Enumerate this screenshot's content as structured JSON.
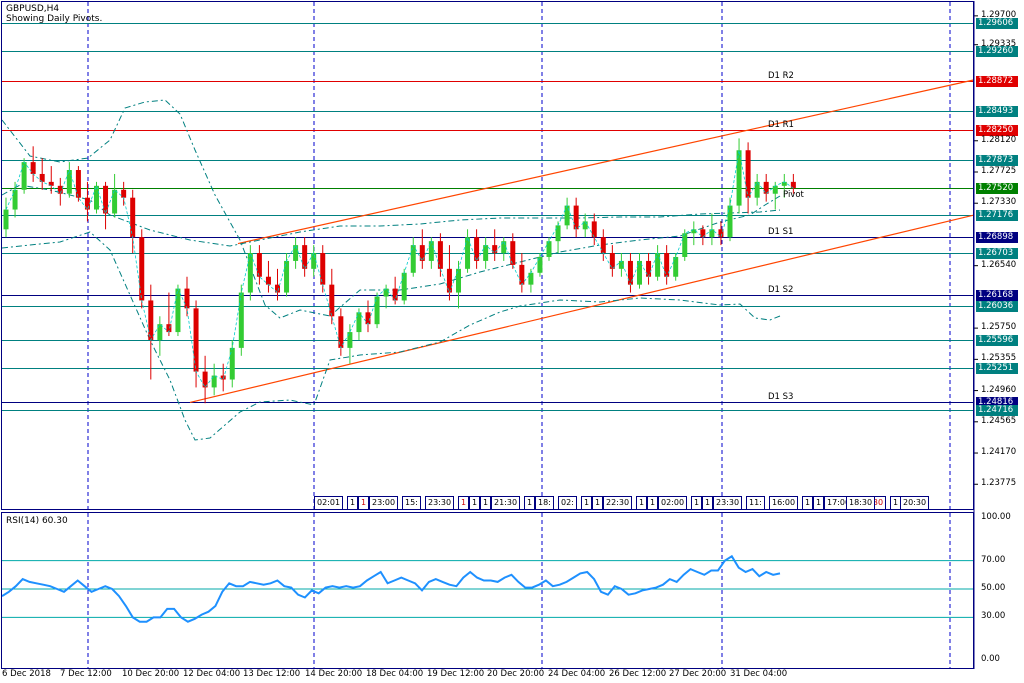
{
  "header": {
    "symbol": "GBPUSD,H4",
    "subtitle": "Showing Daily Pivots."
  },
  "price_axis": {
    "ticks": [
      "1.29700",
      "1.29335",
      "1.28120",
      "1.27725",
      "1.27330",
      "1.26540",
      "1.25750",
      "1.25355",
      "1.24960",
      "1.24565",
      "1.24170",
      "1.23775"
    ]
  },
  "levels": [
    {
      "price": "1.29606",
      "color": "#008080",
      "label": ""
    },
    {
      "price": "1.29260",
      "color": "#008080",
      "label": ""
    },
    {
      "price": "1.28872",
      "color": "#e00000",
      "label": "D1 R2"
    },
    {
      "price": "1.28493",
      "color": "#008080",
      "label": ""
    },
    {
      "price": "1.28250",
      "color": "#e00000",
      "label": "D1 R1"
    },
    {
      "price": "1.27873",
      "color": "#008080",
      "label": ""
    },
    {
      "price": "1.27520",
      "color": "#008000",
      "label": "Pivot"
    },
    {
      "price": "1.27176",
      "color": "#008080",
      "label": ""
    },
    {
      "price": "1.26898",
      "color": "#000080",
      "label": "D1 S1"
    },
    {
      "price": "1.26703",
      "color": "#008080",
      "label": ""
    },
    {
      "price": "1.26168",
      "color": "#000080",
      "label": "D1 S2"
    },
    {
      "price": "1.26036",
      "color": "#008080",
      "label": ""
    },
    {
      "price": "1.25596",
      "color": "#008080",
      "label": ""
    },
    {
      "price": "1.25251",
      "color": "#008080",
      "label": ""
    },
    {
      "price": "1.24816",
      "color": "#000080",
      "label": "D1 S3"
    },
    {
      "price": "1.24716",
      "color": "#008080",
      "label": ""
    }
  ],
  "time_axis": {
    "ticks": [
      "6 Dec 2018",
      "7 Dec 12:00",
      "10 Dec 20:00",
      "12 Dec 04:00",
      "13 Dec 12:00",
      "14 Dec 20:00",
      "18 Dec 04:00",
      "19 Dec 12:00",
      "20 Dec 20:00",
      "24 Dec 04:00",
      "26 Dec 12:00",
      "27 Dec 20:00",
      "31 Dec 04:00"
    ]
  },
  "session_tags": [
    "02:01",
    "1",
    "1",
    "23:00",
    "15:",
    "23:30",
    "1",
    "1",
    "1",
    "21:30",
    "1",
    "18:",
    "02:",
    "1",
    "1",
    "22:30",
    "1",
    "1",
    "02:00",
    "1",
    "1",
    "23:30",
    "11:",
    "16:00",
    "1",
    "1",
    "17:00",
    "17:30",
    "1",
    "18:30",
    "20:30"
  ],
  "rsi": {
    "title": "RSI(14) 60.30",
    "ticks": [
      "100.00",
      "70.00",
      "50.00",
      "30.00",
      "0.00"
    ]
  },
  "chart_data": {
    "type": "candlestick",
    "title": "GBPUSD,H4",
    "subtitle": "Showing Daily Pivots.",
    "ylim": [
      1.235,
      1.2985
    ],
    "colors": {
      "bull": "#33cc33",
      "bear": "#dd0000",
      "fibonacci": "#008080",
      "trendline": "#ff4500",
      "rsi": "#1e90ff"
    },
    "candles": [
      [
        1.27,
        1.274,
        1.269,
        1.2725
      ],
      [
        1.2725,
        1.276,
        1.2715,
        1.275
      ],
      [
        1.275,
        1.279,
        1.2745,
        1.2785
      ],
      [
        1.2785,
        1.2805,
        1.276,
        1.277
      ],
      [
        1.277,
        1.279,
        1.275,
        1.276
      ],
      [
        1.276,
        1.278,
        1.2745,
        1.2755
      ],
      [
        1.2755,
        1.2765,
        1.273,
        1.2745
      ],
      [
        1.2745,
        1.2785,
        1.274,
        1.2775
      ],
      [
        1.2775,
        1.278,
        1.2735,
        1.274
      ],
      [
        1.274,
        1.276,
        1.271,
        1.2725
      ],
      [
        1.2725,
        1.276,
        1.272,
        1.2755
      ],
      [
        1.2755,
        1.276,
        1.27,
        1.272
      ],
      [
        1.272,
        1.277,
        1.2715,
        1.275
      ],
      [
        1.275,
        1.276,
        1.273,
        1.274
      ],
      [
        1.274,
        1.275,
        1.267,
        1.269
      ],
      [
        1.269,
        1.27,
        1.26,
        1.261
      ],
      [
        1.261,
        1.263,
        1.251,
        1.256
      ],
      [
        1.256,
        1.259,
        1.254,
        1.258
      ],
      [
        1.258,
        1.262,
        1.2565,
        1.257
      ],
      [
        1.257,
        1.263,
        1.2565,
        1.2625
      ],
      [
        1.2625,
        1.264,
        1.259,
        1.26
      ],
      [
        1.26,
        1.261,
        1.25,
        1.252
      ],
      [
        1.252,
        1.254,
        1.248,
        1.25
      ],
      [
        1.25,
        1.253,
        1.249,
        1.2515
      ],
      [
        1.2515,
        1.253,
        1.2495,
        1.251
      ],
      [
        1.251,
        1.256,
        1.25,
        1.255
      ],
      [
        1.255,
        1.263,
        1.254,
        1.262
      ],
      [
        1.262,
        1.268,
        1.261,
        1.267
      ],
      [
        1.267,
        1.268,
        1.263,
        1.264
      ],
      [
        1.264,
        1.266,
        1.262,
        1.263
      ],
      [
        1.263,
        1.265,
        1.261,
        1.262
      ],
      [
        1.262,
        1.267,
        1.2615,
        1.266
      ],
      [
        1.266,
        1.269,
        1.265,
        1.268
      ],
      [
        1.268,
        1.269,
        1.264,
        1.265
      ],
      [
        1.265,
        1.268,
        1.264,
        1.267
      ],
      [
        1.267,
        1.268,
        1.262,
        1.263
      ],
      [
        1.263,
        1.265,
        1.258,
        1.259
      ],
      [
        1.259,
        1.26,
        1.254,
        1.255
      ],
      [
        1.255,
        1.258,
        1.253,
        1.257
      ],
      [
        1.257,
        1.26,
        1.256,
        1.2595
      ],
      [
        1.2595,
        1.261,
        1.257,
        1.258
      ],
      [
        1.258,
        1.262,
        1.2575,
        1.2615
      ],
      [
        1.2615,
        1.263,
        1.26,
        1.2625
      ],
      [
        1.2625,
        1.264,
        1.2605,
        1.261
      ],
      [
        1.261,
        1.265,
        1.2605,
        1.2645
      ],
      [
        1.2645,
        1.269,
        1.264,
        1.268
      ],
      [
        1.268,
        1.27,
        1.265,
        1.266
      ],
      [
        1.266,
        1.269,
        1.265,
        1.2685
      ],
      [
        1.2685,
        1.2695,
        1.264,
        1.265
      ],
      [
        1.265,
        1.268,
        1.261,
        1.262
      ],
      [
        1.262,
        1.266,
        1.26,
        1.265
      ],
      [
        1.265,
        1.27,
        1.2645,
        1.269
      ],
      [
        1.269,
        1.27,
        1.265,
        1.266
      ],
      [
        1.266,
        1.269,
        1.265,
        1.268
      ],
      [
        1.268,
        1.27,
        1.266,
        1.267
      ],
      [
        1.267,
        1.269,
        1.266,
        1.2685
      ],
      [
        1.2685,
        1.2695,
        1.265,
        1.2655
      ],
      [
        1.2655,
        1.267,
        1.262,
        1.263
      ],
      [
        1.263,
        1.265,
        1.262,
        1.2645
      ],
      [
        1.2645,
        1.267,
        1.264,
        1.2665
      ],
      [
        1.2665,
        1.269,
        1.266,
        1.2685
      ],
      [
        1.2685,
        1.271,
        1.267,
        1.2705
      ],
      [
        1.2705,
        1.274,
        1.27,
        1.273
      ],
      [
        1.273,
        1.274,
        1.269,
        1.27
      ],
      [
        1.27,
        1.272,
        1.269,
        1.271
      ],
      [
        1.271,
        1.272,
        1.268,
        1.269
      ],
      [
        1.269,
        1.27,
        1.266,
        1.267
      ],
      [
        1.267,
        1.268,
        1.264,
        1.265
      ],
      [
        1.265,
        1.267,
        1.264,
        1.266
      ],
      [
        1.266,
        1.267,
        1.262,
        1.263
      ],
      [
        1.263,
        1.267,
        1.2625,
        1.266
      ],
      [
        1.266,
        1.267,
        1.263,
        1.264
      ],
      [
        1.264,
        1.268,
        1.2635,
        1.267
      ],
      [
        1.267,
        1.268,
        1.263,
        1.264
      ],
      [
        1.264,
        1.267,
        1.2635,
        1.2665
      ],
      [
        1.2665,
        1.27,
        1.266,
        1.2695
      ],
      [
        1.2695,
        1.271,
        1.268,
        1.27
      ],
      [
        1.27,
        1.2705,
        1.268,
        1.269
      ],
      [
        1.269,
        1.272,
        1.268,
        1.27
      ],
      [
        1.27,
        1.271,
        1.268,
        1.269
      ],
      [
        1.269,
        1.274,
        1.2685,
        1.273
      ],
      [
        1.273,
        1.2815,
        1.272,
        1.28
      ],
      [
        1.28,
        1.281,
        1.272,
        1.274
      ],
      [
        1.274,
        1.277,
        1.273,
        1.276
      ],
      [
        1.276,
        1.277,
        1.2735,
        1.2745
      ],
      [
        1.2745,
        1.276,
        1.2725,
        1.2755
      ],
      [
        1.2755,
        1.277,
        1.274,
        1.276
      ],
      [
        1.276,
        1.277,
        1.2745,
        1.2752
      ]
    ],
    "channel": {
      "upper": [
        [
          1.27,
          "start"
        ],
        [
          1.289,
          "end"
        ]
      ],
      "lower": [
        [
          1.2482,
          "start"
        ],
        [
          1.2735,
          "end"
        ]
      ]
    },
    "rsi_values": [
      45,
      48,
      52,
      57,
      55,
      54,
      53,
      52,
      50,
      48,
      52,
      56,
      52,
      48,
      50,
      52,
      50,
      45,
      38,
      30,
      27,
      27,
      30,
      30,
      36,
      36,
      30,
      27,
      29,
      32,
      34,
      38,
      48,
      54,
      52,
      52,
      55,
      54,
      53,
      54,
      56,
      52,
      51,
      46,
      44,
      49,
      47,
      51,
      52,
      51,
      52,
      51,
      52,
      56,
      59,
      62,
      54,
      56,
      58,
      56,
      54,
      49,
      55,
      57,
      55,
      53,
      52,
      58,
      62,
      58,
      56,
      56,
      55,
      58,
      60,
      55,
      51,
      51,
      53,
      56,
      52,
      53,
      55,
      58,
      61,
      62,
      57,
      48,
      46,
      52,
      50,
      46,
      47,
      49,
      50,
      51,
      53,
      57,
      55,
      60,
      64,
      62,
      60,
      63,
      63,
      70,
      73,
      65,
      62,
      64,
      59,
      62,
      60,
      61
    ]
  }
}
